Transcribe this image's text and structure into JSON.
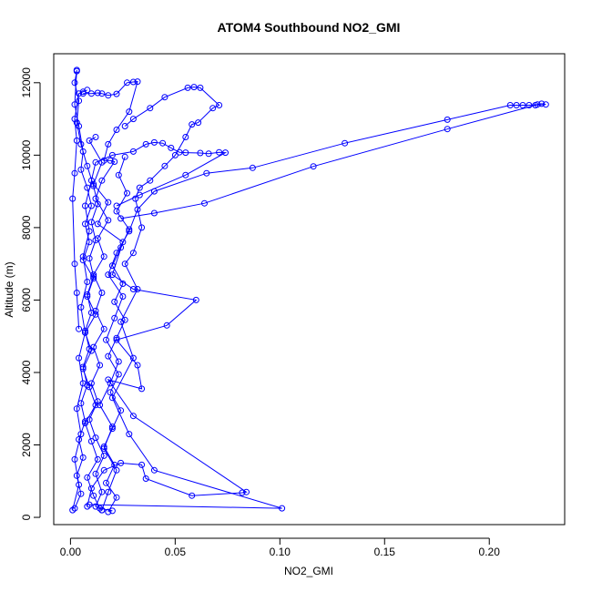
{
  "chart_data": {
    "type": "line",
    "title": "ATOM4 Southbound NO2_GMI",
    "xlabel": "NO2_GMI",
    "ylabel": "Altitude (m)",
    "xlim": [
      -0.008,
      0.236
    ],
    "ylim": [
      -200,
      12800
    ],
    "x_ticks": [
      0.0,
      0.05,
      0.1,
      0.15,
      0.2
    ],
    "x_tick_labels": [
      "0.00",
      "0.05",
      "0.10",
      "0.15",
      "0.20"
    ],
    "y_ticks": [
      0,
      2000,
      4000,
      6000,
      8000,
      10000,
      12000
    ],
    "y_tick_labels": [
      "0",
      "2000",
      "4000",
      "6000",
      "8000",
      "10000",
      "12000"
    ],
    "grid": false,
    "legend": "none",
    "series_color": "#0000ff",
    "marker": "open-circle",
    "series": [
      {
        "values": [
          [
            0.003,
            12350
          ],
          [
            0.002,
            11400
          ],
          [
            0.004,
            10800
          ],
          [
            0.006,
            10100
          ],
          [
            0.005,
            9600
          ],
          [
            0.008,
            9100
          ],
          [
            0.01,
            8600
          ],
          [
            0.007,
            8100
          ],
          [
            0.009,
            7600
          ],
          [
            0.006,
            7100
          ],
          [
            0.011,
            6600
          ],
          [
            0.008,
            6100
          ],
          [
            0.012,
            5600
          ],
          [
            0.007,
            5100
          ],
          [
            0.01,
            4600
          ],
          [
            0.006,
            4100
          ],
          [
            0.009,
            3600
          ],
          [
            0.012,
            3100
          ],
          [
            0.007,
            2600
          ],
          [
            0.01,
            2100
          ],
          [
            0.013,
            1600
          ],
          [
            0.008,
            1100
          ],
          [
            0.011,
            600
          ],
          [
            0.014,
            250
          ],
          [
            0.02,
            180
          ]
        ]
      },
      {
        "values": [
          [
            0.015,
            200
          ],
          [
            0.018,
            700
          ],
          [
            0.022,
            1300
          ],
          [
            0.016,
            1900
          ],
          [
            0.02,
            2500
          ],
          [
            0.014,
            3100
          ],
          [
            0.019,
            3700
          ],
          [
            0.023,
            4300
          ],
          [
            0.017,
            4900
          ],
          [
            0.021,
            5500
          ],
          [
            0.025,
            6100
          ],
          [
            0.018,
            6700
          ],
          [
            0.022,
            7300
          ],
          [
            0.028,
            7900
          ],
          [
            0.032,
            8500
          ],
          [
            0.04,
            9000
          ],
          [
            0.065,
            9500
          ],
          [
            0.087,
            9650
          ],
          [
            0.131,
            10330
          ],
          [
            0.18,
            10980
          ],
          [
            0.21,
            11380
          ],
          [
            0.213,
            11380
          ],
          [
            0.216,
            11380
          ],
          [
            0.219,
            11380
          ],
          [
            0.223,
            11400
          ],
          [
            0.225,
            11420
          ],
          [
            0.227,
            11400
          ],
          [
            0.222,
            11380
          ],
          [
            0.18,
            10720
          ],
          [
            0.116,
            9690
          ],
          [
            0.064,
            8670
          ],
          [
            0.04,
            8400
          ],
          [
            0.024,
            8250
          ]
        ]
      },
      {
        "values": [
          [
            0.006,
            11700
          ],
          [
            0.01,
            11700
          ],
          [
            0.013,
            11720
          ],
          [
            0.015,
            11700
          ],
          [
            0.018,
            11650
          ],
          [
            0.022,
            11690
          ],
          [
            0.027,
            12000
          ],
          [
            0.03,
            12020
          ],
          [
            0.032,
            12030
          ],
          [
            0.028,
            11200
          ],
          [
            0.022,
            10700
          ],
          [
            0.018,
            10300
          ],
          [
            0.016,
            9850
          ],
          [
            0.019,
            9850
          ],
          [
            0.021,
            9820
          ],
          [
            0.015,
            9300
          ],
          [
            0.012,
            8800
          ],
          [
            0.018,
            8200
          ],
          [
            0.013,
            7700
          ],
          [
            0.016,
            7200
          ],
          [
            0.011,
            6700
          ],
          [
            0.015,
            6200
          ],
          [
            0.012,
            5700
          ],
          [
            0.016,
            5200
          ],
          [
            0.011,
            4700
          ],
          [
            0.014,
            4200
          ],
          [
            0.01,
            3700
          ],
          [
            0.013,
            3200
          ],
          [
            0.009,
            2700
          ],
          [
            0.012,
            2200
          ],
          [
            0.016,
            1700
          ],
          [
            0.012,
            1200
          ],
          [
            0.015,
            700
          ],
          [
            0.012,
            300
          ],
          [
            0.015,
            200
          ]
        ]
      },
      {
        "values": [
          [
            0.001,
            200
          ],
          [
            0.004,
            900
          ],
          [
            0.002,
            1600
          ],
          [
            0.005,
            2300
          ],
          [
            0.003,
            3000
          ],
          [
            0.006,
            3700
          ],
          [
            0.004,
            4400
          ],
          [
            0.007,
            5100
          ],
          [
            0.005,
            5800
          ],
          [
            0.008,
            6500
          ],
          [
            0.006,
            7200
          ],
          [
            0.009,
            7900
          ],
          [
            0.007,
            8600
          ],
          [
            0.01,
            9300
          ],
          [
            0.012,
            9800
          ],
          [
            0.02,
            10000
          ],
          [
            0.03,
            10100
          ],
          [
            0.036,
            10300
          ],
          [
            0.04,
            10350
          ],
          [
            0.044,
            10330
          ],
          [
            0.048,
            10200
          ],
          [
            0.052,
            10080
          ],
          [
            0.055,
            10070
          ],
          [
            0.062,
            10060
          ],
          [
            0.066,
            10040
          ],
          [
            0.071,
            10080
          ],
          [
            0.074,
            10070
          ],
          [
            0.055,
            9450
          ],
          [
            0.033,
            8900
          ],
          [
            0.022,
            8600
          ]
        ]
      },
      {
        "values": [
          [
            0.008,
            300
          ],
          [
            0.01,
            800
          ],
          [
            0.016,
            1300
          ],
          [
            0.024,
            1500
          ],
          [
            0.034,
            1450
          ],
          [
            0.036,
            1070
          ],
          [
            0.058,
            600
          ],
          [
            0.082,
            680
          ],
          [
            0.084,
            700
          ],
          [
            0.03,
            2800
          ],
          [
            0.018,
            3800
          ],
          [
            0.034,
            3550
          ],
          [
            0.032,
            4200
          ],
          [
            0.022,
            4900
          ],
          [
            0.046,
            5300
          ],
          [
            0.06,
            6000
          ],
          [
            0.03,
            6300
          ],
          [
            0.02,
            6700
          ],
          [
            0.025,
            7600
          ],
          [
            0.013,
            8100
          ],
          [
            0.018,
            8700
          ],
          [
            0.011,
            9200
          ],
          [
            0.015,
            9800
          ],
          [
            0.009,
            10400
          ],
          [
            0.012,
            10500
          ]
        ]
      },
      {
        "values": [
          [
            0.009,
            350
          ],
          [
            0.101,
            250
          ],
          [
            0.04,
            1300
          ],
          [
            0.028,
            2300
          ],
          [
            0.02,
            3300
          ],
          [
            0.03,
            4400
          ],
          [
            0.024,
            5400
          ],
          [
            0.032,
            6300
          ],
          [
            0.026,
            7000
          ],
          [
            0.03,
            7300
          ],
          [
            0.034,
            8000
          ],
          [
            0.031,
            8800
          ],
          [
            0.033,
            9100
          ],
          [
            0.038,
            9300
          ],
          [
            0.045,
            9700
          ],
          [
            0.05,
            10000
          ],
          [
            0.055,
            10500
          ],
          [
            0.058,
            10850
          ],
          [
            0.061,
            10900
          ],
          [
            0.068,
            11300
          ],
          [
            0.071,
            11380
          ],
          [
            0.062,
            11860
          ],
          [
            0.059,
            11880
          ],
          [
            0.056,
            11860
          ],
          [
            0.045,
            11600
          ],
          [
            0.038,
            11300
          ],
          [
            0.03,
            11000
          ],
          [
            0.026,
            10800
          ]
        ]
      },
      {
        "values": [
          [
            0.002,
            250
          ],
          [
            0.005,
            650
          ],
          [
            0.003,
            1150
          ],
          [
            0.006,
            1650
          ],
          [
            0.004,
            2150
          ],
          [
            0.007,
            2650
          ],
          [
            0.005,
            3150
          ],
          [
            0.008,
            3650
          ],
          [
            0.006,
            4150
          ],
          [
            0.009,
            4650
          ],
          [
            0.007,
            5150
          ],
          [
            0.01,
            5650
          ],
          [
            0.008,
            6150
          ],
          [
            0.011,
            6650
          ],
          [
            0.009,
            7150
          ],
          [
            0.012,
            7650
          ],
          [
            0.01,
            8150
          ],
          [
            0.013,
            8650
          ],
          [
            0.011,
            9150
          ],
          [
            0.008,
            9700
          ],
          [
            0.005,
            10300
          ],
          [
            0.003,
            10900
          ],
          [
            0.004,
            11500
          ],
          [
            0.002,
            12000
          ],
          [
            0.003,
            12320
          ]
        ]
      },
      {
        "values": [
          [
            0.018,
            150
          ],
          [
            0.022,
            550
          ],
          [
            0.017,
            950
          ],
          [
            0.021,
            1450
          ],
          [
            0.016,
            1950
          ],
          [
            0.02,
            2450
          ],
          [
            0.024,
            2950
          ],
          [
            0.019,
            3450
          ],
          [
            0.023,
            3950
          ],
          [
            0.018,
            4450
          ],
          [
            0.022,
            4950
          ],
          [
            0.026,
            5450
          ],
          [
            0.021,
            5950
          ],
          [
            0.025,
            6450
          ],
          [
            0.02,
            6950
          ],
          [
            0.024,
            7450
          ],
          [
            0.028,
            7950
          ],
          [
            0.022,
            8450
          ],
          [
            0.027,
            8950
          ],
          [
            0.023,
            9450
          ],
          [
            0.026,
            9950
          ]
        ]
      },
      {
        "values": [
          [
            0.004,
            5200
          ],
          [
            0.003,
            6200
          ],
          [
            0.002,
            7000
          ],
          [
            0.001,
            8800
          ],
          [
            0.002,
            9500
          ],
          [
            0.003,
            10400
          ],
          [
            0.002,
            11000
          ],
          [
            0.004,
            11700
          ],
          [
            0.006,
            11750
          ],
          [
            0.008,
            11800
          ]
        ]
      }
    ]
  }
}
